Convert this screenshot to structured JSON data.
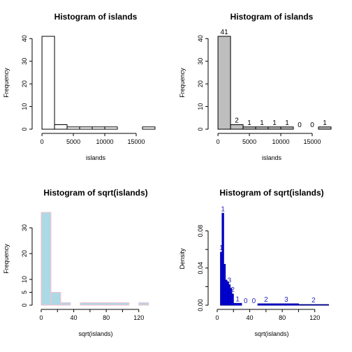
{
  "chart_data": [
    {
      "type": "bar",
      "title": "Histogram of islands",
      "xlabel": "islands",
      "ylabel": "Frequency",
      "xlim": [
        -900,
        18000
      ],
      "ylim": [
        0,
        41
      ],
      "xticks": [
        0,
        5000,
        10000,
        15000
      ],
      "yticks": [
        0,
        10,
        20,
        30,
        40
      ],
      "bins": [
        {
          "x0": 0,
          "x1": 2000,
          "count": 41
        },
        {
          "x0": 2000,
          "x1": 4000,
          "count": 2
        },
        {
          "x0": 4000,
          "x1": 6000,
          "count": 1
        },
        {
          "x0": 6000,
          "x1": 8000,
          "count": 1
        },
        {
          "x0": 8000,
          "x1": 10000,
          "count": 1
        },
        {
          "x0": 10000,
          "x1": 12000,
          "count": 1
        },
        {
          "x0": 12000,
          "x1": 14000,
          "count": 0
        },
        {
          "x0": 14000,
          "x1": 16000,
          "count": 0
        },
        {
          "x0": 16000,
          "x1": 18000,
          "count": 1
        }
      ],
      "fill": "#ffffff",
      "show_labels": false
    },
    {
      "type": "bar",
      "title": "Histogram of islands",
      "xlabel": "islands",
      "ylabel": "Frequency",
      "xlim": [
        -900,
        18000
      ],
      "ylim": [
        0,
        41
      ],
      "xticks": [
        0,
        5000,
        10000,
        15000
      ],
      "yticks": [
        0,
        10,
        20,
        30,
        40
      ],
      "bins": [
        {
          "x0": 0,
          "x1": 2000,
          "count": 41
        },
        {
          "x0": 2000,
          "x1": 4000,
          "count": 2
        },
        {
          "x0": 4000,
          "x1": 6000,
          "count": 1
        },
        {
          "x0": 6000,
          "x1": 8000,
          "count": 1
        },
        {
          "x0": 8000,
          "x1": 10000,
          "count": 1
        },
        {
          "x0": 10000,
          "x1": 12000,
          "count": 1
        },
        {
          "x0": 12000,
          "x1": 14000,
          "count": 0
        },
        {
          "x0": 14000,
          "x1": 16000,
          "count": 0
        },
        {
          "x0": 16000,
          "x1": 18000,
          "count": 1
        }
      ],
      "fill": "#bebebe",
      "show_labels": true
    },
    {
      "type": "bar",
      "title": "Histogram of sqrt(islands)",
      "xlabel": "sqrt(islands)",
      "ylabel": "Frequency",
      "xlim": [
        -6,
        140
      ],
      "ylim": [
        0,
        36
      ],
      "xticks": [
        0,
        20,
        40,
        60,
        80,
        100,
        120
      ],
      "xtick_labels": [
        "0",
        "",
        "40",
        "",
        "80",
        "",
        "120"
      ],
      "yticks": [
        0,
        5,
        10,
        20,
        30
      ],
      "bins": [
        {
          "x0": 0,
          "x1": 12,
          "count": 36
        },
        {
          "x0": 12,
          "x1": 24,
          "count": 5
        },
        {
          "x0": 24,
          "x1": 36,
          "count": 1
        },
        {
          "x0": 36,
          "x1": 48,
          "count": 0
        },
        {
          "x0": 48,
          "x1": 60,
          "count": 1
        },
        {
          "x0": 60,
          "x1": 72,
          "count": 1
        },
        {
          "x0": 72,
          "x1": 84,
          "count": 1
        },
        {
          "x0": 84,
          "x1": 96,
          "count": 1
        },
        {
          "x0": 96,
          "x1": 108,
          "count": 1
        },
        {
          "x0": 108,
          "x1": 120,
          "count": 0
        },
        {
          "x0": 120,
          "x1": 132,
          "count": 1
        }
      ],
      "fill": "#add8e6",
      "border": "#ffc0cb",
      "show_labels": false
    },
    {
      "type": "bar",
      "title": "Histogram of sqrt(islands)",
      "xlabel": "sqrt(islands)",
      "ylabel": "Density",
      "xlim": [
        -6,
        140
      ],
      "ylim": [
        0,
        0.1
      ],
      "xticks": [
        0,
        20,
        40,
        60,
        80,
        100,
        120
      ],
      "xtick_labels": [
        "0",
        "",
        "40",
        "",
        "80",
        "",
        "120"
      ],
      "yticks": [
        0,
        0.02,
        0.04,
        0.06,
        0.08
      ],
      "ytick_labels": [
        "0.00",
        "",
        "0.04",
        "",
        "0.08"
      ],
      "bins": [
        {
          "x0": 0,
          "x1": 4,
          "density": 0,
          "label": ""
        },
        {
          "x0": 4,
          "x1": 6,
          "density": 0.057,
          "label": "1"
        },
        {
          "x0": 6,
          "x1": 8,
          "density": 0.099,
          "label": "1"
        },
        {
          "x0": 8,
          "x1": 10,
          "density": 0.044,
          "label": ""
        },
        {
          "x0": 10,
          "x1": 12,
          "density": 0.027,
          "label": ""
        },
        {
          "x0": 12,
          "x1": 14,
          "density": 0.025,
          "label": ""
        },
        {
          "x0": 14,
          "x1": 16,
          "density": 0.022,
          "label": "3"
        },
        {
          "x0": 16,
          "x1": 18,
          "density": 0.018,
          "label": ""
        },
        {
          "x0": 18,
          "x1": 20,
          "density": 0.012,
          "label": "2"
        },
        {
          "x0": 20,
          "x1": 30,
          "density": 0.002,
          "label": "1"
        },
        {
          "x0": 30,
          "x1": 40,
          "density": 0.0,
          "label": "0"
        },
        {
          "x0": 40,
          "x1": 50,
          "density": 0.0,
          "label": "0"
        },
        {
          "x0": 50,
          "x1": 70,
          "density": 0.0015,
          "label": "2"
        },
        {
          "x0": 70,
          "x1": 100,
          "density": 0.0015,
          "label": "3"
        },
        {
          "x0": 100,
          "x1": 137,
          "density": 0.0007,
          "label": "2"
        }
      ],
      "fill": "#0000ff",
      "border": "#00008b",
      "show_labels": true
    }
  ]
}
